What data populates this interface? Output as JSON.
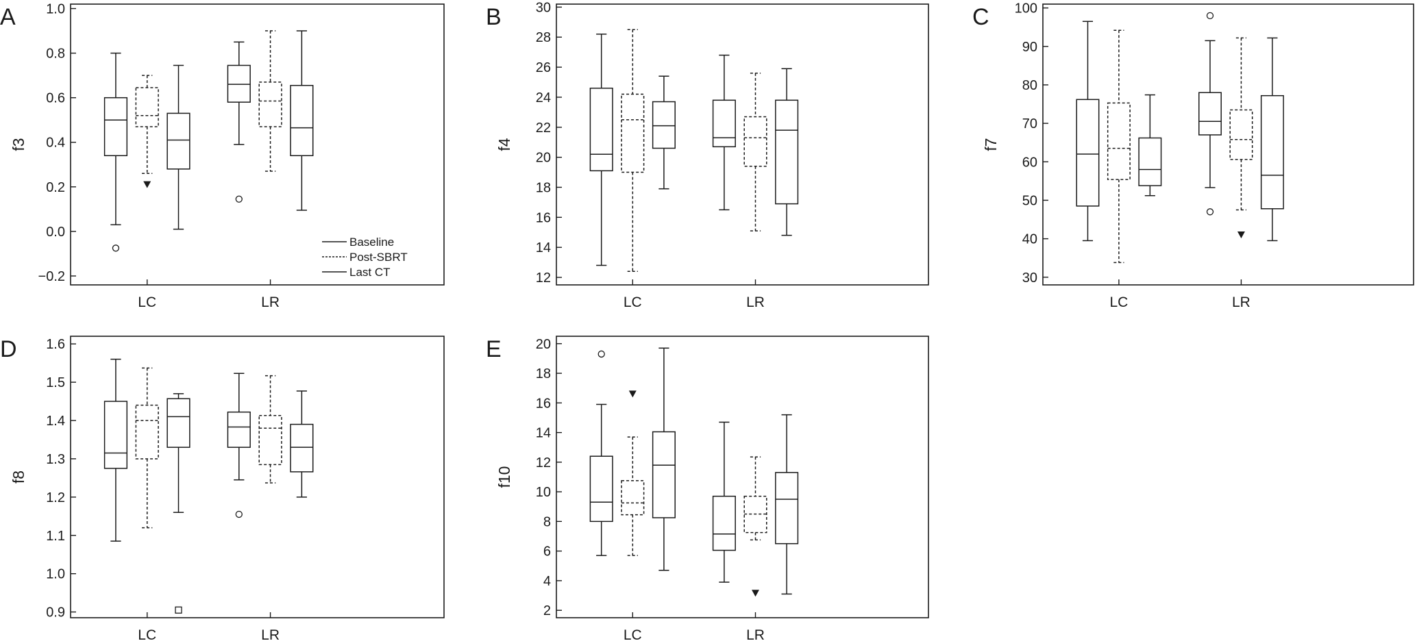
{
  "legend": [
    {
      "label": "Baseline",
      "dash": false
    },
    {
      "label": "Post-SBRT",
      "dash": true
    },
    {
      "label": "Last CT",
      "dash": false
    }
  ],
  "colors": {
    "stroke": "#1a1a1a",
    "background": "#ffffff"
  },
  "chart_data": [
    {
      "letter": "A",
      "type": "box",
      "ylabel": "f3",
      "ylim": [
        -0.24,
        1.02
      ],
      "yticks": [
        -0.2,
        0,
        0.2,
        0.4,
        0.6,
        0.8,
        1.0
      ],
      "ytick_labels": [
        "−0.2",
        "0.0",
        "0.2",
        "0.4",
        "0.6",
        "0.8",
        "1.0"
      ],
      "categories": [
        "LC",
        "LR"
      ],
      "show_legend": true,
      "series": [
        {
          "name": "Baseline",
          "boxes": [
            {
              "min": 0.03,
              "q1": 0.34,
              "median": 0.5,
              "q3": 0.6,
              "max": 0.8,
              "outliers": [
                {
                  "v": -0.075,
                  "m": "circle"
                }
              ]
            },
            {
              "min": 0.39,
              "q1": 0.58,
              "median": 0.66,
              "q3": 0.745,
              "max": 0.85,
              "outliers": [
                {
                  "v": 0.145,
                  "m": "circle"
                }
              ]
            }
          ]
        },
        {
          "name": "Post-SBRT",
          "boxes": [
            {
              "min": 0.26,
              "q1": 0.47,
              "median": 0.52,
              "q3": 0.645,
              "max": 0.7,
              "outliers": [
                {
                  "v": 0.21,
                  "m": "triangle"
                }
              ]
            },
            {
              "min": 0.27,
              "q1": 0.47,
              "median": 0.585,
              "q3": 0.67,
              "max": 0.9,
              "outliers": []
            }
          ]
        },
        {
          "name": "Last CT",
          "boxes": [
            {
              "min": 0.01,
              "q1": 0.28,
              "median": 0.41,
              "q3": 0.53,
              "max": 0.745,
              "outliers": []
            },
            {
              "min": 0.095,
              "q1": 0.34,
              "median": 0.465,
              "q3": 0.655,
              "max": 0.9,
              "outliers": []
            }
          ]
        }
      ]
    },
    {
      "letter": "B",
      "type": "box",
      "ylabel": "f4",
      "ylim": [
        11.5,
        30.2
      ],
      "yticks": [
        12,
        14,
        16,
        18,
        20,
        22,
        24,
        26,
        28,
        30
      ],
      "ytick_labels": [
        "12",
        "14",
        "16",
        "18",
        "20",
        "22",
        "24",
        "26",
        "28",
        "30"
      ],
      "categories": [
        "LC",
        "LR"
      ],
      "show_legend": false,
      "series": [
        {
          "name": "Baseline",
          "boxes": [
            {
              "min": 12.8,
              "q1": 19.1,
              "median": 20.2,
              "q3": 24.6,
              "max": 28.2,
              "outliers": []
            },
            {
              "min": 16.5,
              "q1": 20.7,
              "median": 21.3,
              "q3": 23.8,
              "max": 26.8,
              "outliers": []
            }
          ]
        },
        {
          "name": "Post-SBRT",
          "boxes": [
            {
              "min": 12.4,
              "q1": 19.0,
              "median": 22.5,
              "q3": 24.2,
              "max": 28.5,
              "outliers": []
            },
            {
              "min": 15.1,
              "q1": 19.4,
              "median": 21.3,
              "q3": 22.7,
              "max": 25.6,
              "outliers": []
            }
          ]
        },
        {
          "name": "Last CT",
          "boxes": [
            {
              "min": 17.9,
              "q1": 20.6,
              "median": 22.1,
              "q3": 23.7,
              "max": 25.4,
              "outliers": []
            },
            {
              "min": 14.8,
              "q1": 16.9,
              "median": 21.8,
              "q3": 23.8,
              "max": 25.9,
              "outliers": []
            }
          ]
        }
      ]
    },
    {
      "letter": "C",
      "type": "box",
      "ylabel": "f7",
      "ylim": [
        28,
        101
      ],
      "yticks": [
        30,
        40,
        50,
        60,
        70,
        80,
        90,
        100
      ],
      "ytick_labels": [
        "30",
        "40",
        "50",
        "60",
        "70",
        "80",
        "90",
        "100"
      ],
      "categories": [
        "LC",
        "LR"
      ],
      "show_legend": false,
      "series": [
        {
          "name": "Baseline",
          "boxes": [
            {
              "min": 39.5,
              "q1": 48.5,
              "median": 62,
              "q3": 76.2,
              "max": 96.5,
              "outliers": []
            },
            {
              "min": 53.3,
              "q1": 67,
              "median": 70.5,
              "q3": 78,
              "max": 91.5,
              "outliers": [
                {
                  "v": 47,
                  "m": "circle"
                },
                {
                  "v": 98,
                  "m": "circle"
                }
              ]
            }
          ]
        },
        {
          "name": "Post-SBRT",
          "boxes": [
            {
              "min": 33.8,
              "q1": 55.4,
              "median": 63.5,
              "q3": 75.3,
              "max": 94.2,
              "outliers": []
            },
            {
              "min": 47.5,
              "q1": 60.6,
              "median": 65.8,
              "q3": 73.5,
              "max": 92.2,
              "outliers": [
                {
                  "v": 41,
                  "m": "triangle"
                }
              ]
            }
          ]
        },
        {
          "name": "Last CT",
          "boxes": [
            {
              "min": 51.2,
              "q1": 53.8,
              "median": 58,
              "q3": 66.2,
              "max": 77.4,
              "outliers": []
            },
            {
              "min": 39.5,
              "q1": 47.8,
              "median": 56.5,
              "q3": 77.2,
              "max": 92.2,
              "outliers": []
            }
          ]
        }
      ]
    },
    {
      "letter": "D",
      "type": "box",
      "ylabel": "f8",
      "ylim": [
        0.885,
        1.62
      ],
      "yticks": [
        0.9,
        1.0,
        1.1,
        1.2,
        1.3,
        1.4,
        1.5,
        1.6
      ],
      "ytick_labels": [
        "0.9",
        "1.0",
        "1.1",
        "1.2",
        "1.3",
        "1.4",
        "1.5",
        "1.6"
      ],
      "categories": [
        "LC",
        "LR"
      ],
      "show_legend": false,
      "series": [
        {
          "name": "Baseline",
          "boxes": [
            {
              "min": 1.085,
              "q1": 1.275,
              "median": 1.315,
              "q3": 1.45,
              "max": 1.56,
              "outliers": []
            },
            {
              "min": 1.245,
              "q1": 1.33,
              "median": 1.383,
              "q3": 1.422,
              "max": 1.523,
              "outliers": [
                {
                  "v": 1.155,
                  "m": "circle"
                }
              ]
            }
          ]
        },
        {
          "name": "Post-SBRT",
          "boxes": [
            {
              "min": 1.12,
              "q1": 1.3,
              "median": 1.4,
              "q3": 1.44,
              "max": 1.537,
              "outliers": []
            },
            {
              "min": 1.237,
              "q1": 1.285,
              "median": 1.38,
              "q3": 1.413,
              "max": 1.517,
              "outliers": []
            }
          ]
        },
        {
          "name": "Last CT",
          "boxes": [
            {
              "min": 1.16,
              "q1": 1.33,
              "median": 1.41,
              "q3": 1.457,
              "max": 1.47,
              "outliers": [
                {
                  "v": 0.905,
                  "m": "square"
                }
              ]
            },
            {
              "min": 1.2,
              "q1": 1.266,
              "median": 1.33,
              "q3": 1.39,
              "max": 1.477,
              "outliers": []
            }
          ]
        }
      ]
    },
    {
      "letter": "E",
      "type": "box",
      "ylabel": "f10",
      "ylim": [
        1.5,
        20.5
      ],
      "yticks": [
        2,
        4,
        6,
        8,
        10,
        12,
        14,
        16,
        18,
        20
      ],
      "ytick_labels": [
        "2",
        "4",
        "6",
        "8",
        "10",
        "12",
        "14",
        "16",
        "18",
        "20"
      ],
      "categories": [
        "LC",
        "LR"
      ],
      "show_legend": false,
      "series": [
        {
          "name": "Baseline",
          "boxes": [
            {
              "min": 5.7,
              "q1": 8.0,
              "median": 9.3,
              "q3": 12.4,
              "max": 15.9,
              "outliers": [
                {
                  "v": 19.3,
                  "m": "circle"
                }
              ]
            },
            {
              "min": 3.9,
              "q1": 6.05,
              "median": 7.15,
              "q3": 9.7,
              "max": 14.7,
              "outliers": []
            }
          ]
        },
        {
          "name": "Post-SBRT",
          "boxes": [
            {
              "min": 5.7,
              "q1": 8.45,
              "median": 9.25,
              "q3": 10.75,
              "max": 13.7,
              "outliers": [
                {
                  "v": 16.6,
                  "m": "triangle"
                }
              ]
            },
            {
              "min": 6.75,
              "q1": 7.25,
              "median": 8.5,
              "q3": 9.7,
              "max": 12.35,
              "outliers": [
                {
                  "v": 3.15,
                  "m": "triangle"
                }
              ]
            }
          ]
        },
        {
          "name": "Last CT",
          "boxes": [
            {
              "min": 4.7,
              "q1": 8.25,
              "median": 11.8,
              "q3": 14.05,
              "max": 19.7,
              "outliers": []
            },
            {
              "min": 3.1,
              "q1": 6.5,
              "median": 9.5,
              "q3": 11.3,
              "max": 15.2,
              "outliers": []
            }
          ]
        }
      ]
    }
  ]
}
